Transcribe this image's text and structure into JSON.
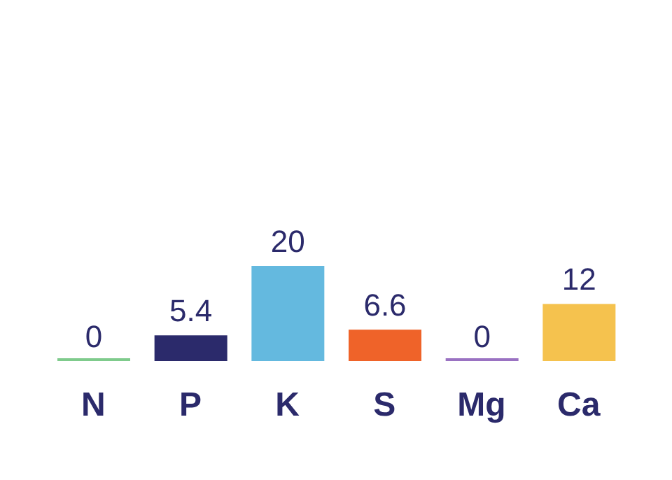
{
  "chart_data": {
    "type": "bar",
    "categories": [
      "N",
      "P",
      "K",
      "S",
      "Mg",
      "Ca"
    ],
    "values": [
      0,
      5.4,
      20,
      6.6,
      0,
      12
    ],
    "colors": [
      "#7fcb8c",
      "#2b2a6b",
      "#64b9df",
      "#ef6329",
      "#9a72c2",
      "#f5c24e"
    ],
    "data_labels": true
  }
}
